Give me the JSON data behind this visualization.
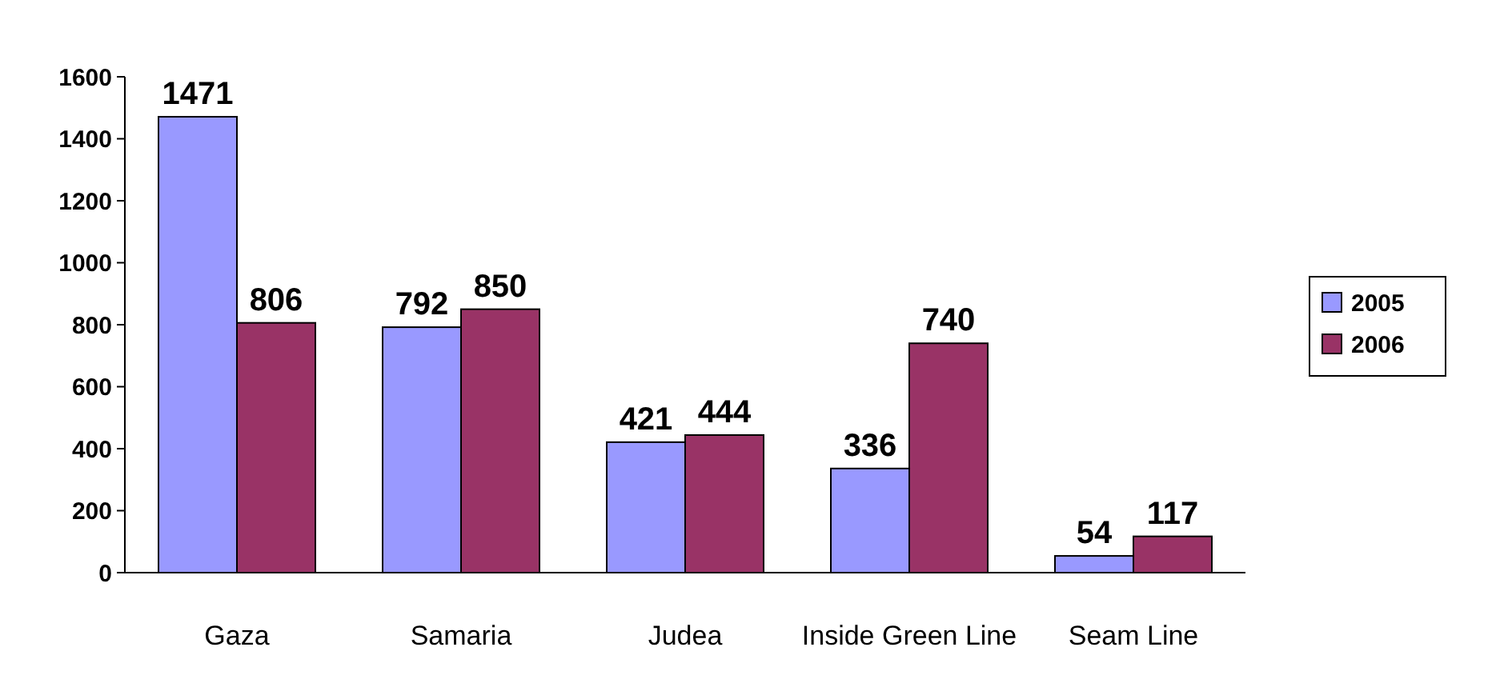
{
  "chart_data": {
    "type": "bar",
    "categories": [
      "Gaza",
      "Samaria",
      "Judea",
      "Inside Green Line",
      "Seam Line"
    ],
    "series": [
      {
        "name": "2005",
        "color": "#9999ff",
        "values": [
          1471,
          792,
          421,
          336,
          54
        ]
      },
      {
        "name": "2006",
        "color": "#993366",
        "values": [
          806,
          850,
          444,
          740,
          117
        ]
      }
    ],
    "ylim": [
      0,
      1600
    ],
    "yticks": [
      0,
      200,
      400,
      600,
      800,
      1000,
      1200,
      1400,
      1600
    ],
    "data_labels": true,
    "legend": "right",
    "grid": false
  }
}
